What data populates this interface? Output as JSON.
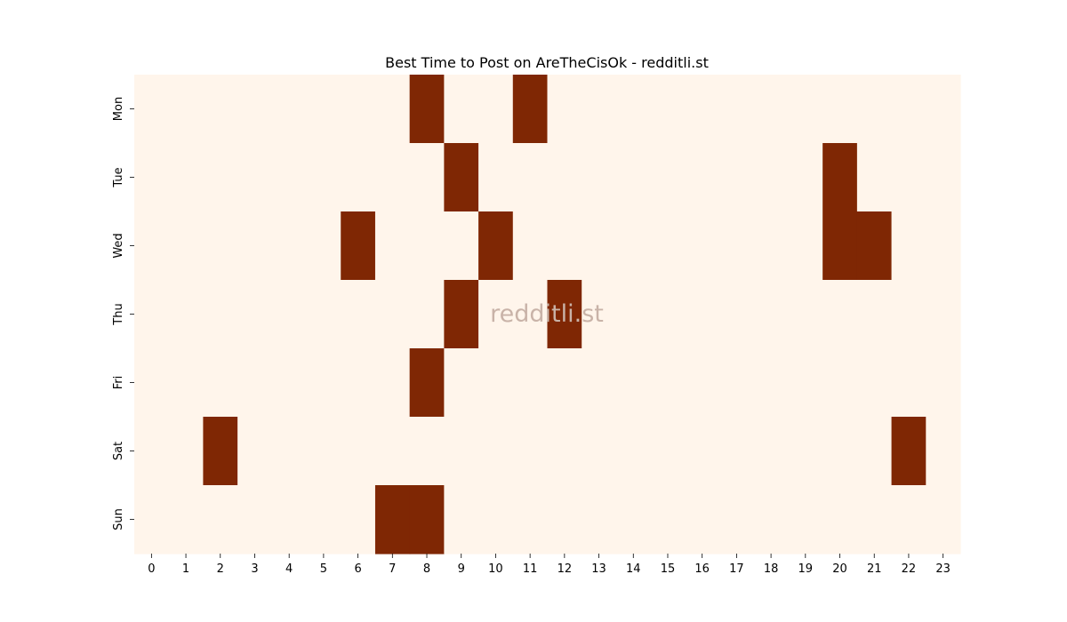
{
  "chart_data": {
    "type": "heatmap",
    "title": "Best Time to Post on AreTheCisOk - redditli.st",
    "watermark": "redditli.st",
    "xlabel": "",
    "ylabel": "",
    "x_categories": [
      "0",
      "1",
      "2",
      "3",
      "4",
      "5",
      "6",
      "7",
      "8",
      "9",
      "10",
      "11",
      "12",
      "13",
      "14",
      "15",
      "16",
      "17",
      "18",
      "19",
      "20",
      "21",
      "22",
      "23"
    ],
    "y_categories": [
      "Mon",
      "Tue",
      "Wed",
      "Thu",
      "Fri",
      "Sat",
      "Sun"
    ],
    "values": [
      [
        0,
        0,
        0,
        0,
        0,
        0,
        0,
        0,
        1,
        0,
        0,
        1,
        0,
        0,
        0,
        0,
        0,
        0,
        0,
        0,
        0,
        0,
        0,
        0
      ],
      [
        0,
        0,
        0,
        0,
        0,
        0,
        0,
        0,
        0,
        1,
        0,
        0,
        0,
        0,
        0,
        0,
        0,
        0,
        0,
        0,
        1,
        0,
        0,
        0
      ],
      [
        0,
        0,
        0,
        0,
        0,
        0,
        1,
        0,
        0,
        0,
        1,
        0,
        0,
        0,
        0,
        0,
        0,
        0,
        0,
        0,
        1,
        1,
        0,
        0
      ],
      [
        0,
        0,
        0,
        0,
        0,
        0,
        0,
        0,
        0,
        1,
        0,
        0,
        1,
        0,
        0,
        0,
        0,
        0,
        0,
        0,
        0,
        0,
        0,
        0
      ],
      [
        0,
        0,
        0,
        0,
        0,
        0,
        0,
        0,
        1,
        0,
        0,
        0,
        0,
        0,
        0,
        0,
        0,
        0,
        0,
        0,
        0,
        0,
        0,
        0
      ],
      [
        0,
        0,
        1,
        0,
        0,
        0,
        0,
        0,
        0,
        0,
        0,
        0,
        0,
        0,
        0,
        0,
        0,
        0,
        0,
        0,
        0,
        0,
        1,
        0
      ],
      [
        0,
        0,
        0,
        0,
        0,
        0,
        0,
        1,
        1,
        0,
        0,
        0,
        0,
        0,
        0,
        0,
        0,
        0,
        0,
        0,
        0,
        0,
        0,
        0
      ]
    ],
    "colors": {
      "low": "#fff5eb",
      "high": "#7f2704",
      "watermark": "#c9b3a8",
      "text": "#000000"
    },
    "grid": false,
    "legend": "none"
  }
}
